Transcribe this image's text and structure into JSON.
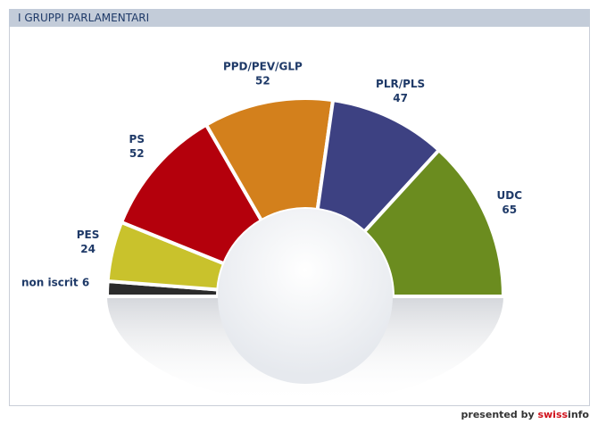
{
  "chart_data": {
    "type": "pie",
    "title": "I GRUPPI PARLAMENTARI",
    "categories": [
      "non iscrit",
      "PES",
      "PS",
      "PPD/PEV/GLP",
      "PLR/PLS",
      "UDC"
    ],
    "values": [
      6,
      24,
      52,
      52,
      47,
      65
    ],
    "colors": [
      "#2b2b2b",
      "#c9c22c",
      "#b4000c",
      "#d3801c",
      "#3d4182",
      "#6b8c1f"
    ]
  },
  "footer": {
    "text": "presented by",
    "brand_a": "swiss",
    "brand_b": "info"
  }
}
